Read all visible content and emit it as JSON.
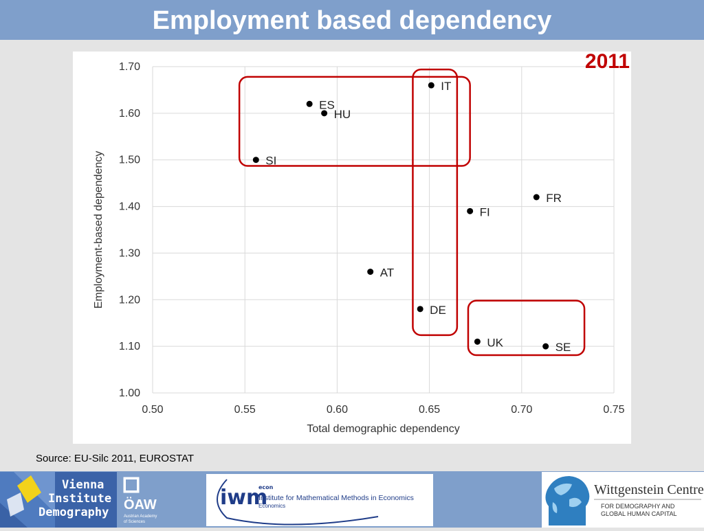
{
  "header": {
    "title": "Employment based dependency"
  },
  "year_label": "2011",
  "source": "Source: EU-Silc 2011, EUROSTAT",
  "footer": {
    "vid_line1": "Vienna",
    "vid_line2": "Institute of",
    "vid_line3": "Demography",
    "oaw_name": "ÖAW",
    "oaw_sub1": "Austrian Academy",
    "oaw_sub2": "of Sciences",
    "iwm_econ": "econ",
    "iwm_name": "Institute for Mathematical Methods in Economics",
    "iwm_sub": "Economics",
    "wc_title": "Wittgenstein Centre",
    "wc_sub1": "FOR DEMOGRAPHY AND",
    "wc_sub2": "GLOBAL HUMAN CAPITAL"
  },
  "chart_data": {
    "type": "scatter",
    "xlabel": "Total demographic dependency",
    "ylabel": "Employment-based dependency",
    "xlim": [
      0.5,
      0.75
    ],
    "ylim": [
      1.0,
      1.7
    ],
    "xticks": [
      "0.50",
      "0.55",
      "0.60",
      "0.65",
      "0.70",
      "0.75"
    ],
    "yticks": [
      "1.00",
      "1.10",
      "1.20",
      "1.30",
      "1.40",
      "1.50",
      "1.60",
      "1.70"
    ],
    "grid": true,
    "points": [
      {
        "label": "IT",
        "x": 0.651,
        "y": 1.66
      },
      {
        "label": "ES",
        "x": 0.585,
        "y": 1.62
      },
      {
        "label": "HU",
        "x": 0.593,
        "y": 1.6
      },
      {
        "label": "SI",
        "x": 0.556,
        "y": 1.5
      },
      {
        "label": "FR",
        "x": 0.708,
        "y": 1.42
      },
      {
        "label": "FI",
        "x": 0.672,
        "y": 1.39
      },
      {
        "label": "AT",
        "x": 0.618,
        "y": 1.26
      },
      {
        "label": "DE",
        "x": 0.645,
        "y": 1.18
      },
      {
        "label": "UK",
        "x": 0.676,
        "y": 1.11
      },
      {
        "label": "SE",
        "x": 0.713,
        "y": 1.1
      }
    ],
    "highlight_groups": [
      {
        "x0": 0.547,
        "x1": 0.672,
        "y0": 1.487,
        "y1": 1.678
      },
      {
        "x0": 0.641,
        "x1": 0.665,
        "y0": 1.124,
        "y1": 1.694
      },
      {
        "x0": 0.671,
        "x1": 0.734,
        "y0": 1.081,
        "y1": 1.198
      }
    ],
    "highlight_color": "#c00000"
  }
}
